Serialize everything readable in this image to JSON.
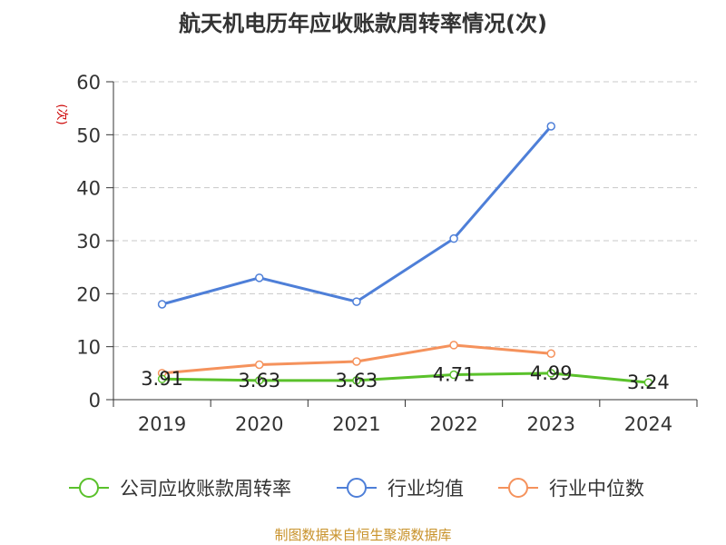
{
  "chart_data": {
    "type": "line",
    "title": "航天机电历年应收账款周转率情况(次)",
    "ylabel": "(次)",
    "xlabel": "",
    "categories": [
      "2019",
      "2020",
      "2021",
      "2022",
      "2023",
      "2024"
    ],
    "ylim": [
      0,
      60
    ],
    "yticks": [
      0,
      10,
      20,
      30,
      40,
      50,
      60
    ],
    "grid": true,
    "legend_position": "bottom",
    "series": [
      {
        "name": "公司应收账款周转率",
        "color": "#5ac12b",
        "values": [
          3.91,
          3.63,
          3.63,
          4.71,
          4.99,
          3.24
        ],
        "labels": [
          "3.91",
          "3.63",
          "3.63",
          "4.71",
          "4.99",
          "3.24"
        ]
      },
      {
        "name": "行业均值",
        "color": "#4e7fd8",
        "values": [
          18.0,
          23.0,
          18.5,
          30.4,
          51.6,
          null
        ]
      },
      {
        "name": "行业中位数",
        "color": "#f5925c",
        "values": [
          5.0,
          6.6,
          7.2,
          10.3,
          8.7,
          null
        ]
      }
    ],
    "source": "制图数据来自恒生聚源数据库"
  },
  "colors": {
    "axis": "#333333",
    "grid": "#c8c8c8",
    "ylabel": "#cc0000",
    "source": "#c8922a"
  }
}
